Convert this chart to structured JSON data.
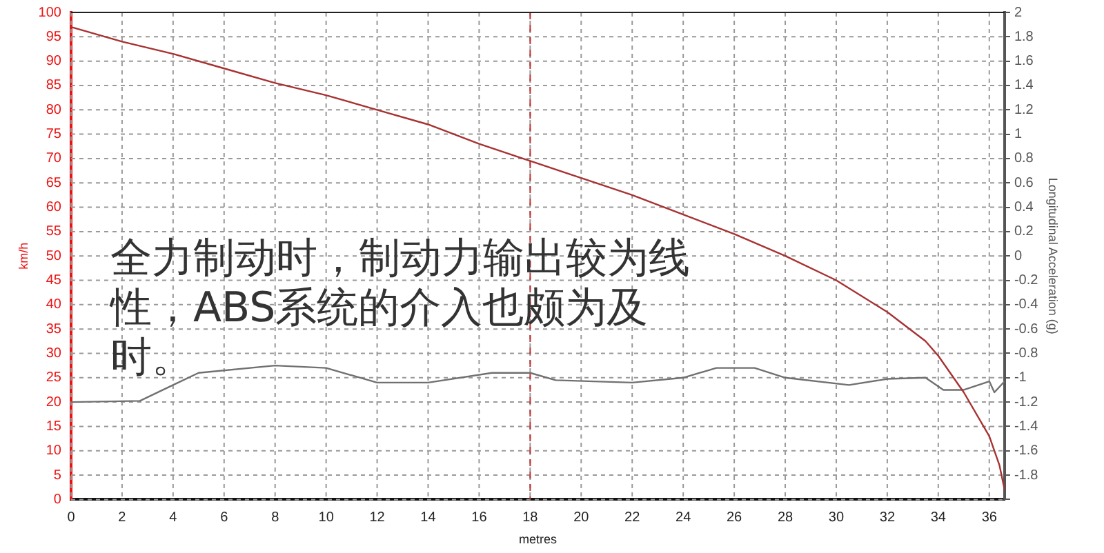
{
  "chart_data": {
    "type": "line",
    "xlabel": "metres",
    "ylabel": "km/h",
    "y2label": "Longitudinal Acceleration (g)",
    "annotations": [
      "全力制动时，制动力输出较为线性，ABS系统的介入也颇为及时。"
    ],
    "xlim": [
      0,
      36.6
    ],
    "xticks": [
      0,
      2,
      4,
      6,
      8,
      10,
      12,
      14,
      16,
      18,
      20,
      22,
      24,
      26,
      28,
      30,
      32,
      34,
      36
    ],
    "ylim": [
      0,
      100
    ],
    "yticks": [
      0,
      5,
      10,
      15,
      20,
      25,
      30,
      35,
      40,
      45,
      50,
      55,
      60,
      65,
      70,
      75,
      80,
      85,
      90,
      95,
      100
    ],
    "y2lim": [
      -2,
      2
    ],
    "y2ticks": [
      {
        "value": -2,
        "label": null
      },
      -1.8,
      -1.6,
      -1.4,
      -1.2,
      -1,
      -0.8,
      -0.6,
      -0.4,
      -0.2,
      0,
      0.2,
      0.4,
      0.6,
      0.8,
      1,
      1.2,
      1.4,
      1.6,
      1.8,
      2
    ],
    "series": [
      {
        "color": "#a83232",
        "x": [
          0,
          2,
          4,
          6,
          8,
          10,
          12,
          14,
          16,
          18,
          20,
          22,
          24,
          26,
          28,
          30,
          32,
          33.5,
          34,
          35,
          36,
          36.4,
          36.6
        ],
        "values": [
          97,
          94,
          91.5,
          88.5,
          85.5,
          83,
          80,
          77,
          73,
          69.5,
          66,
          62.5,
          58.5,
          54.5,
          50,
          45,
          38.5,
          32.5,
          29.5,
          22,
          13,
          7,
          2
        ]
      },
      {
        "color": "#707070",
        "axis": "y2",
        "x": [
          0,
          2.7,
          5,
          8,
          10,
          12,
          14,
          16.5,
          18,
          19,
          22,
          24,
          25.3,
          26.8,
          28,
          30.5,
          32,
          33.5,
          34.2,
          35,
          36,
          36.2,
          36.6
        ],
        "values": [
          -1.2,
          -1.19,
          -0.96,
          -0.9,
          -0.92,
          -1.04,
          -1.04,
          -0.96,
          -0.96,
          -1.02,
          -1.04,
          -1.0,
          -0.92,
          -0.92,
          -1.0,
          -1.06,
          -1.01,
          -1.0,
          -1.1,
          -1.1,
          -1.03,
          -1.12,
          -1.03
        ]
      }
    ],
    "ref_lines": [
      {
        "axis": "x",
        "value": 18,
        "color": "#c03030",
        "line_style": "dashed"
      }
    ],
    "grid": true,
    "legend": false,
    "marker": "none",
    "line_style": "solid"
  }
}
